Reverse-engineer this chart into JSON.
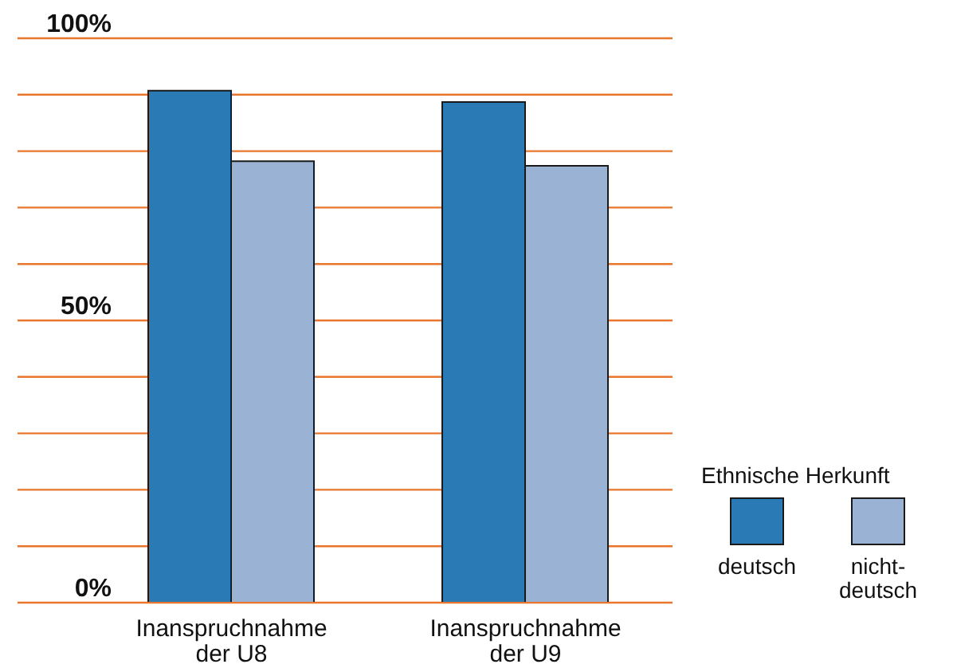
{
  "chart_data": {
    "type": "bar",
    "categories": [
      "Inanspruchnahme der U8",
      "Inanspruchnahme der U9"
    ],
    "series": [
      {
        "name": "deutsch",
        "color": "#2a7ab5",
        "values": [
          90.7,
          88.7
        ]
      },
      {
        "name": "nicht-deutsch",
        "color": "#9ab3d5",
        "values": [
          78.2,
          77.4
        ]
      }
    ],
    "legend_title": "Ethnische Herkunft",
    "legend": "bottom right",
    "grid": "y",
    "ylim": [
      0,
      100
    ],
    "yticks": [
      {
        "value": 0,
        "label": "0%"
      },
      {
        "value": 10,
        "label": null
      },
      {
        "value": 20,
        "label": null
      },
      {
        "value": 30,
        "label": null
      },
      {
        "value": 40,
        "label": null
      },
      {
        "value": 50,
        "label": "50%"
      },
      {
        "value": 60,
        "label": null
      },
      {
        "value": 70,
        "label": null
      },
      {
        "value": 80,
        "label": null
      },
      {
        "value": 90,
        "label": null
      },
      {
        "value": 100,
        "label": "100%"
      }
    ]
  }
}
